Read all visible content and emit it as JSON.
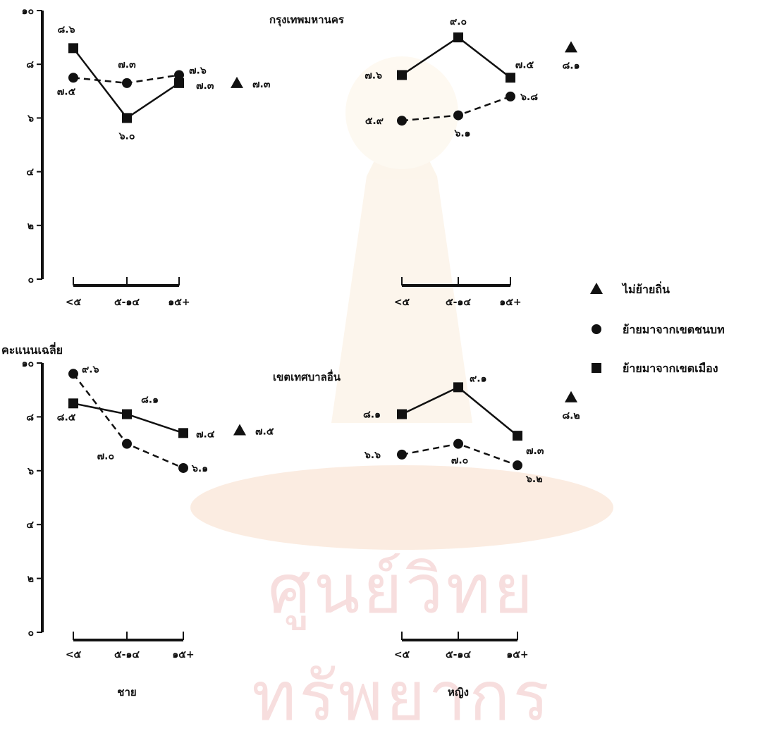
{
  "ylabel": "คะแนนเฉลี่ย",
  "watermark_text": "ศูนย์วิทยทรัพยากร",
  "gender_labels": [
    "ชาย",
    "หญิง"
  ],
  "legend": [
    {
      "label": "ไม่ย้ายถิ่น",
      "icon": "triangle-icon"
    },
    {
      "label": "ย้ายมาจากเขตชนบท",
      "icon": "circle-icon"
    },
    {
      "label": "ย้ายมาจากเขตเมือง",
      "icon": "square-icon"
    }
  ],
  "colors": {
    "ink": "#111111",
    "watermark": "#f7dede",
    "watermark_accent": "#f3c9a9"
  },
  "chart_data": [
    {
      "type": "line",
      "region": "กรุงเทพมหานคร",
      "gender": "ชาย",
      "title": "กรุงเทพมหานคร",
      "categories": [
        "<๕",
        "๕-๑๔",
        "๑๕+"
      ],
      "y_ticks": [
        "๐",
        "๒",
        "๔",
        "๖",
        "๘",
        "๑๐"
      ],
      "ylim": [
        0,
        10
      ],
      "series": [
        {
          "name": "ย้ายมาจากเขตเมือง",
          "marker": "square",
          "dash": "solid",
          "values": [
            8.6,
            6.0,
            7.3
          ],
          "labels": [
            "๘.๖",
            "๖.๐",
            "๗.๓"
          ]
        },
        {
          "name": "ย้ายมาจากเขตชนบท",
          "marker": "circle",
          "dash": "dashed",
          "values": [
            7.5,
            7.3,
            7.6
          ],
          "labels": [
            "๗.๕",
            "๗.๓",
            "๗.๖"
          ]
        }
      ],
      "non_migrant": {
        "name": "ไม่ย้ายถิ่น",
        "value": 7.3,
        "label": "๗.๓"
      }
    },
    {
      "type": "line",
      "region": "กรุงเทพมหานคร",
      "gender": "หญิง",
      "title": "",
      "categories": [
        "<๕",
        "๕-๑๔",
        "๑๕+"
      ],
      "y_ticks": [],
      "ylim": [
        0,
        10
      ],
      "series": [
        {
          "name": "ย้ายมาจากเขตเมือง",
          "marker": "square",
          "dash": "solid",
          "values": [
            7.6,
            9.0,
            7.5
          ],
          "labels": [
            "๗.๖",
            "๙.๐",
            "๗.๕"
          ]
        },
        {
          "name": "ย้ายมาจากเขตชนบท",
          "marker": "circle",
          "dash": "dashed",
          "values": [
            5.9,
            6.1,
            6.8
          ],
          "labels": [
            "๕.๙",
            "๖.๑",
            "๖.๘"
          ]
        }
      ],
      "non_migrant": {
        "name": "ไม่ย้ายถิ่น",
        "value": 8.1,
        "label": "๘.๑"
      }
    },
    {
      "type": "line",
      "region": "เขตเทศบาลอื่น",
      "gender": "ชาย",
      "title": "เขตเทศบาลอื่น",
      "categories": [
        "<๕",
        "๕-๑๔",
        "๑๕+"
      ],
      "y_ticks": [
        "๐",
        "๒",
        "๔",
        "๖",
        "๘",
        "๑๐"
      ],
      "ylim": [
        0,
        10
      ],
      "series": [
        {
          "name": "ย้ายมาจากเขตเมือง",
          "marker": "square",
          "dash": "solid",
          "values": [
            8.5,
            8.1,
            7.4
          ],
          "labels": [
            "๘.๕",
            "๘.๑",
            "๗.๔"
          ]
        },
        {
          "name": "ย้ายมาจากเขตชนบท",
          "marker": "circle",
          "dash": "dashed",
          "values": [
            9.6,
            7.0,
            6.1
          ],
          "labels": [
            "๙.๖",
            "๗.๐",
            "๖.๑"
          ]
        }
      ],
      "non_migrant": {
        "name": "ไม่ย้ายถิ่น",
        "value": 7.5,
        "label": "๗.๕"
      }
    },
    {
      "type": "line",
      "region": "เขตเทศบาลอื่น",
      "gender": "หญิง",
      "title": "",
      "categories": [
        "<๕",
        "๕-๑๔",
        "๑๕+"
      ],
      "y_ticks": [],
      "ylim": [
        0,
        10
      ],
      "series": [
        {
          "name": "ย้ายมาจากเขตเมือง",
          "marker": "square",
          "dash": "solid",
          "values": [
            8.1,
            9.1,
            7.3
          ],
          "labels": [
            "๘.๑",
            "๙.๑",
            "๗.๓"
          ]
        },
        {
          "name": "ย้ายมาจากเขตชนบท",
          "marker": "circle",
          "dash": "dashed",
          "values": [
            6.6,
            7.0,
            6.2
          ],
          "labels": [
            "๖.๖",
            "๗.๐",
            "๖.๒"
          ]
        }
      ],
      "non_migrant": {
        "name": "ไม่ย้ายถิ่น",
        "value": 8.2,
        "label": "๘.๒"
      }
    }
  ]
}
